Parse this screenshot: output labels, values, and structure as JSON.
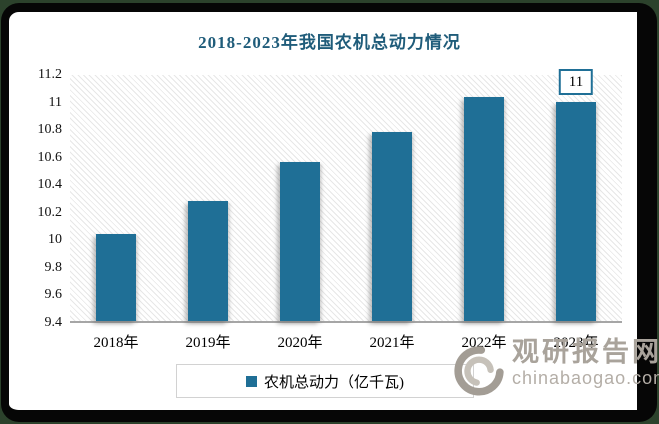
{
  "title": {
    "text": "2018-2023年我国农机总动力情况",
    "color": "#1F5C7A"
  },
  "chart_data": {
    "type": "bar",
    "title": "2018-2023年我国农机总动力情况",
    "categories": [
      "2018年",
      "2019年",
      "2020年",
      "2021年",
      "2022年",
      "2023年"
    ],
    "series": [
      {
        "name": "农机总动力（亿千瓦)",
        "values": [
          10.04,
          10.28,
          10.56,
          10.78,
          11.04,
          11.0
        ]
      }
    ],
    "ylim": [
      9.4,
      11.2
    ],
    "yticks": [
      "9.4",
      "9.6",
      "9.8",
      "10",
      "10.2",
      "10.4",
      "10.6",
      "10.8",
      "11",
      "11.2"
    ],
    "bar_color": "#1F6F96",
    "data_labels": [
      {
        "index": 5,
        "text": "11"
      }
    ],
    "grid": false,
    "legend_position": "bottom",
    "plot_background": "diagonal-hatch"
  },
  "legend": {
    "label": "农机总动力（亿千瓦)",
    "swatch_color": "#1F6F96"
  },
  "watermark": {
    "brand": "观研报告网",
    "domain": "chinabaogao.com"
  }
}
